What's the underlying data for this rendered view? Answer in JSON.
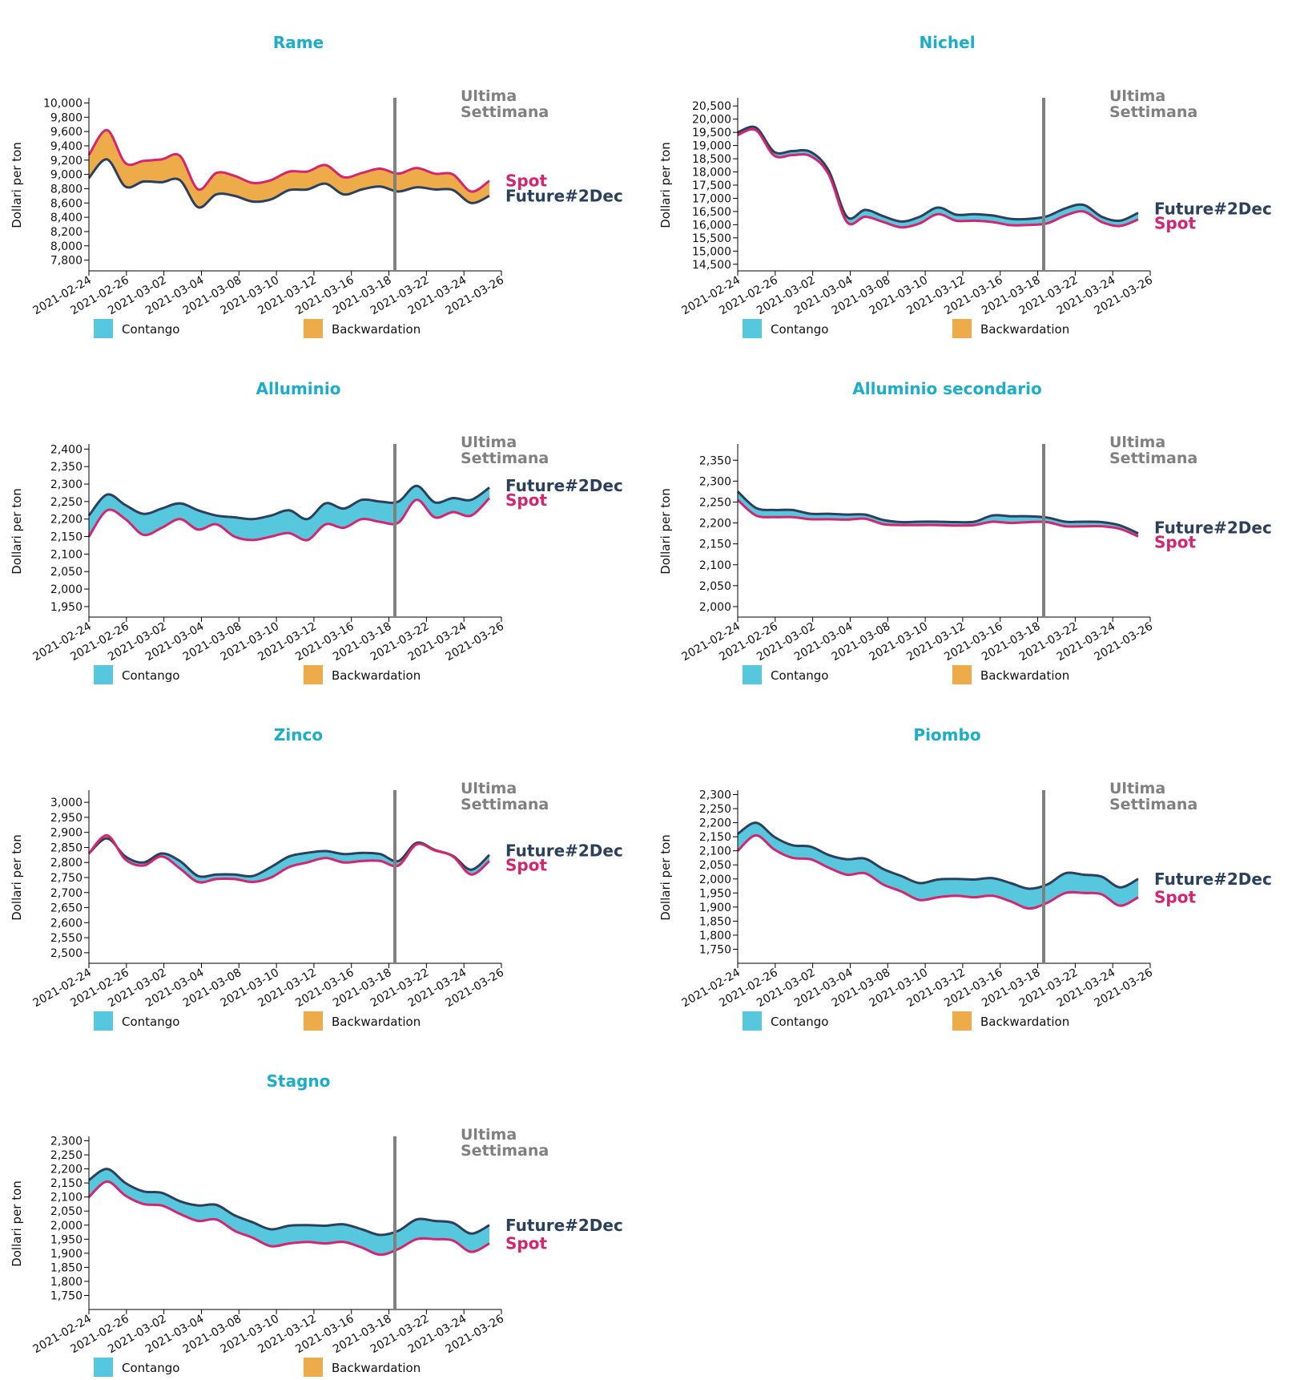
{
  "colors": {
    "title": "#1aaecb",
    "spot": "#d6246e",
    "future": "#2b3f5e",
    "contango": "#56c7dd",
    "backwardation": "#eeab4a",
    "marker": "#808080"
  },
  "legend": {
    "contango": "Contango",
    "backwardation": "Backwardation"
  },
  "marker_label": [
    "Ultima",
    "Settimana"
  ],
  "ylabel": "Dollari per ton",
  "x_ticks": [
    "2021-02-24",
    "2021-02-26",
    "2021-03-02",
    "2021-03-04",
    "2021-03-08",
    "2021-03-10",
    "2021-03-12",
    "2021-03-16",
    "2021-03-18",
    "2021-03-22",
    "2021-03-24",
    "2021-03-26"
  ],
  "chart_data": [
    {
      "type": "line",
      "title": "Rame",
      "ylim": [
        7650,
        10050
      ],
      "yticks": [
        7800,
        8000,
        8200,
        8400,
        8600,
        8800,
        9000,
        9200,
        9400,
        9600,
        9800,
        10000
      ],
      "series": [
        {
          "name": "Spot",
          "values": [
            9270,
            9620,
            9160,
            9190,
            9210,
            9260,
            8790,
            9020,
            8980,
            8880,
            8920,
            9040,
            9040,
            9130,
            8960,
            9020,
            9080,
            9010,
            9090,
            9010,
            9000,
            8760,
            8910
          ]
        },
        {
          "name": "Future#2Dec",
          "values": [
            8950,
            9210,
            8830,
            8900,
            8890,
            8920,
            8540,
            8720,
            8700,
            8620,
            8650,
            8780,
            8790,
            8870,
            8720,
            8790,
            8830,
            8760,
            8820,
            8790,
            8780,
            8600,
            8700
          ]
        }
      ]
    },
    {
      "type": "line",
      "title": "Nichel",
      "ylim": [
        14250,
        20750
      ],
      "yticks": [
        14500,
        15000,
        15500,
        16000,
        16500,
        17000,
        17500,
        18000,
        18500,
        19000,
        19500,
        20000,
        20500
      ],
      "series": [
        {
          "name": "Spot",
          "values": [
            19400,
            19580,
            18620,
            18640,
            18600,
            17900,
            16100,
            16300,
            16100,
            15900,
            16050,
            16400,
            16150,
            16150,
            16100,
            15980,
            15990,
            16050,
            16350,
            16500,
            16100,
            15950,
            16200
          ]
        },
        {
          "name": "Future#2Dec",
          "values": [
            19500,
            19680,
            18760,
            18790,
            18760,
            18050,
            16300,
            16560,
            16320,
            16120,
            16300,
            16650,
            16380,
            16400,
            16350,
            16220,
            16220,
            16320,
            16620,
            16750,
            16300,
            16150,
            16450
          ]
        }
      ]
    },
    {
      "type": "line",
      "title": "Alluminio",
      "ylim": [
        1920,
        2410
      ],
      "yticks": [
        1950,
        2000,
        2050,
        2100,
        2150,
        2200,
        2250,
        2300,
        2350,
        2400
      ],
      "series": [
        {
          "name": "Spot",
          "values": [
            2150,
            2225,
            2200,
            2155,
            2175,
            2200,
            2170,
            2185,
            2150,
            2140,
            2150,
            2160,
            2140,
            2185,
            2175,
            2200,
            2192,
            2190,
            2255,
            2205,
            2220,
            2210,
            2260
          ]
        },
        {
          "name": "Future#2Dec",
          "values": [
            2210,
            2270,
            2240,
            2215,
            2230,
            2245,
            2225,
            2210,
            2205,
            2200,
            2210,
            2225,
            2200,
            2245,
            2230,
            2255,
            2250,
            2250,
            2295,
            2248,
            2260,
            2255,
            2290
          ]
        }
      ]
    },
    {
      "type": "line",
      "title": "Alluminio secondario",
      "ylim": [
        1975,
        2385
      ],
      "yticks": [
        2000,
        2050,
        2100,
        2150,
        2200,
        2250,
        2300,
        2350
      ],
      "series": [
        {
          "name": "Spot",
          "values": [
            2255,
            2218,
            2214,
            2214,
            2209,
            2209,
            2208,
            2210,
            2197,
            2195,
            2195,
            2195,
            2194,
            2195,
            2203,
            2200,
            2202,
            2202,
            2192,
            2192,
            2192,
            2186,
            2168
          ]
        },
        {
          "name": "Future#2Dec",
          "values": [
            2275,
            2236,
            2231,
            2231,
            2222,
            2222,
            2220,
            2220,
            2207,
            2202,
            2203,
            2203,
            2202,
            2203,
            2218,
            2216,
            2216,
            2213,
            2203,
            2203,
            2202,
            2194,
            2175
          ]
        }
      ]
    },
    {
      "type": "line",
      "title": "Zinco",
      "ylim": [
        2465,
        3035
      ],
      "yticks": [
        2500,
        2550,
        2600,
        2650,
        2700,
        2750,
        2800,
        2850,
        2900,
        2950,
        3000
      ],
      "series": [
        {
          "name": "Spot",
          "values": [
            2830,
            2890,
            2810,
            2790,
            2820,
            2780,
            2735,
            2745,
            2745,
            2735,
            2750,
            2785,
            2800,
            2815,
            2800,
            2805,
            2805,
            2790,
            2860,
            2840,
            2820,
            2760,
            2805
          ]
        },
        {
          "name": "Future#2Dec",
          "values": [
            2830,
            2880,
            2820,
            2800,
            2830,
            2805,
            2755,
            2760,
            2760,
            2755,
            2785,
            2820,
            2832,
            2838,
            2828,
            2832,
            2828,
            2805,
            2865,
            2842,
            2822,
            2776,
            2825
          ]
        }
      ]
    },
    {
      "type": "line",
      "title": "Piombo",
      "ylim": [
        1700,
        2310
      ],
      "yticks": [
        1750,
        1800,
        1850,
        1900,
        1950,
        2000,
        2050,
        2100,
        2150,
        2200,
        2250,
        2300
      ],
      "series": [
        {
          "name": "Spot",
          "values": [
            2100,
            2155,
            2105,
            2075,
            2070,
            2040,
            2015,
            2020,
            1980,
            1955,
            1925,
            1935,
            1940,
            1935,
            1940,
            1920,
            1895,
            1915,
            1950,
            1950,
            1945,
            1905,
            1935
          ]
        },
        {
          "name": "Future#2Dec",
          "values": [
            2160,
            2200,
            2150,
            2120,
            2115,
            2085,
            2070,
            2072,
            2035,
            2010,
            1985,
            1998,
            2000,
            1998,
            2003,
            1985,
            1965,
            1980,
            2020,
            2015,
            2008,
            1970,
            2000
          ]
        }
      ]
    },
    {
      "type": "line",
      "title": "Stagno",
      "ylim": [
        1700,
        2310
      ],
      "yticks": [
        1750,
        1800,
        1850,
        1900,
        1950,
        2000,
        2050,
        2100,
        2150,
        2200,
        2250,
        2300
      ],
      "series": [
        {
          "name": "Spot",
          "values": [
            2100,
            2155,
            2105,
            2075,
            2070,
            2040,
            2015,
            2020,
            1980,
            1955,
            1925,
            1935,
            1940,
            1935,
            1940,
            1920,
            1895,
            1915,
            1950,
            1950,
            1945,
            1905,
            1935
          ]
        },
        {
          "name": "Future#2Dec",
          "values": [
            2160,
            2200,
            2150,
            2120,
            2115,
            2085,
            2070,
            2072,
            2035,
            2010,
            1985,
            1998,
            2000,
            1998,
            2003,
            1985,
            1965,
            1980,
            2020,
            2015,
            2008,
            1970,
            2000
          ]
        }
      ]
    }
  ]
}
